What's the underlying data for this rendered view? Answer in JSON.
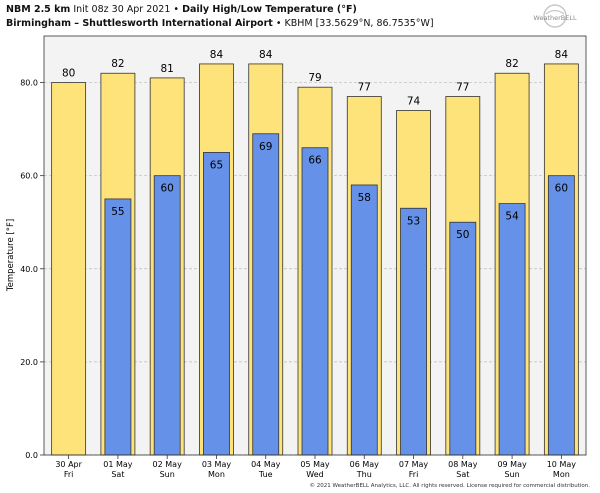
{
  "header": {
    "model": "NBM 2.5 km",
    "init": "Init 08z 30 Apr 2021",
    "title": "Daily High/Low Temperature (°F)",
    "station_name": "Birmingham – Shuttlesworth International Airport",
    "station_id": "KBHM [33.5629°N, 86.7535°W]",
    "bullet": "•"
  },
  "logo": {
    "text": "WeatherBELL"
  },
  "footer": {
    "copyright": "© 2021 WeatherBELL Analytics, LLC. All rights reserved. License required for commercial distribution."
  },
  "colors": {
    "high": "#fee27a",
    "low": "#6591e8",
    "bar_outline": "#333333",
    "grid": "#bbbbbb",
    "plot_bg": "#f3f3f3"
  },
  "chart_data": {
    "type": "bar",
    "title": "Daily High/Low Temperature (°F)",
    "ylabel": "Temperature [°F]",
    "xlabel": "",
    "ylim": [
      0,
      90
    ],
    "yticks": [
      0,
      20,
      40,
      60,
      80
    ],
    "ytick_labels": [
      "0.0",
      "20.0",
      "40.0",
      "60.0",
      "80.0"
    ],
    "grid": true,
    "categories": [
      "30 Apr",
      "01 May",
      "02 May",
      "03 May",
      "04 May",
      "05 May",
      "06 May",
      "07 May",
      "08 May",
      "09 May",
      "10 May"
    ],
    "weekdays": [
      "Fri",
      "Sat",
      "Sun",
      "Mon",
      "Tue",
      "Wed",
      "Thu",
      "Fri",
      "Sat",
      "Sun",
      "Mon"
    ],
    "series": [
      {
        "name": "High",
        "values": [
          80,
          82,
          81,
          84,
          84,
          79,
          77,
          74,
          77,
          82,
          84
        ]
      },
      {
        "name": "Low",
        "values": [
          null,
          55,
          60,
          65,
          69,
          66,
          58,
          53,
          50,
          54,
          60
        ]
      }
    ]
  }
}
